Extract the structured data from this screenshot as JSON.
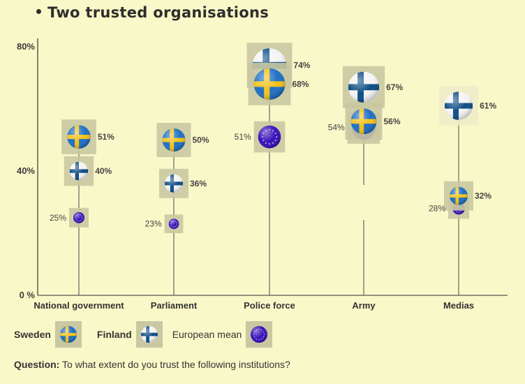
{
  "title": "Two trusted organisations",
  "legend": [
    {
      "key": "sweden",
      "label": "Sweden",
      "bold": true
    },
    {
      "key": "finland",
      "label": "Finland",
      "bold": true
    },
    {
      "key": "eu",
      "label": "European mean",
      "bold": false
    }
  ],
  "question": {
    "label": "Question:",
    "text": "To what extent do you trust the following institutions?"
  },
  "colors": {
    "background": "#f9f8c8",
    "icon_box": "#c9c8a2",
    "sweden_blue": "#1f6fc4",
    "sweden_yellow": "#f2c21a",
    "finland_blue": "#0d4d85",
    "eu_blue": "#3a10b8"
  },
  "chart_data": {
    "type": "scatter",
    "title": "Two trusted organisations",
    "xlabel": "",
    "ylabel": "",
    "ylim": [
      0,
      80
    ],
    "yticks": [
      {
        "value": 0,
        "label": "0 %"
      },
      {
        "value": 40,
        "label": "40%"
      },
      {
        "value": 80,
        "label": "80%"
      }
    ],
    "categories": [
      "National government",
      "Parliament",
      "Police force",
      "Army",
      "Medias"
    ],
    "series": [
      {
        "name": "Sweden",
        "key": "sweden",
        "values": [
          51,
          50,
          68,
          56,
          32
        ]
      },
      {
        "name": "Finland",
        "key": "finland",
        "values": [
          40,
          36,
          74,
          67,
          61
        ]
      },
      {
        "name": "European mean",
        "key": "eu",
        "values": [
          25,
          23,
          51,
          54,
          28
        ]
      }
    ],
    "legend_position": "bottom-left",
    "grid": false
  }
}
